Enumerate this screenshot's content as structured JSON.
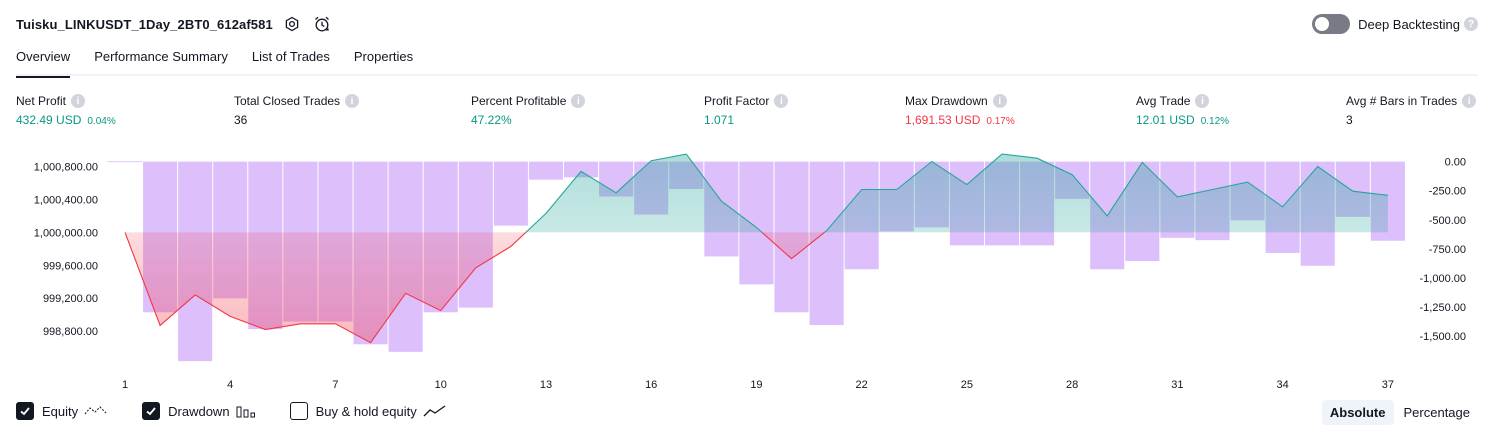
{
  "header": {
    "title": "Tuisku_LINKUSDT_1Day_2BT0_612af581",
    "settings_icon": "gear-icon",
    "alert_icon": "alarm-clock-icon"
  },
  "deep_backtesting": {
    "label": "Deep Backtesting",
    "enabled": false
  },
  "tabs": [
    {
      "label": "Overview",
      "active": true
    },
    {
      "label": "Performance Summary",
      "active": false
    },
    {
      "label": "List of Trades",
      "active": false
    },
    {
      "label": "Properties",
      "active": false
    }
  ],
  "metrics": {
    "net_profit": {
      "label": "Net Profit",
      "value": "432.49 USD",
      "pct": "0.04%"
    },
    "total_closed_trades": {
      "label": "Total Closed Trades",
      "value": "36"
    },
    "percent_profitable": {
      "label": "Percent Profitable",
      "value": "47.22%"
    },
    "profit_factor": {
      "label": "Profit Factor",
      "value": "1.071"
    },
    "max_drawdown": {
      "label": "Max Drawdown",
      "value": "1,691.53 USD",
      "pct": "0.17%"
    },
    "avg_trade": {
      "label": "Avg Trade",
      "value": "12.01 USD",
      "pct": "0.12%"
    },
    "avg_bars": {
      "label": "Avg # Bars in Trades",
      "value": "3"
    }
  },
  "colors": {
    "profit": "#089981",
    "loss": "#f23645",
    "drawdown_bar": "#d9b8fb",
    "equity_line_up": "#26a69a",
    "equity_line_down": "#f23645"
  },
  "chart_data": {
    "type": "line",
    "x_ticks": [
      1,
      4,
      7,
      10,
      13,
      16,
      19,
      22,
      25,
      28,
      31,
      34,
      37
    ],
    "left_axis": {
      "ticks": [
        "1,000,800.00",
        "1,000,400.00",
        "1,000,000.00",
        "999,600.00",
        "999,200.00",
        "998,800.00"
      ],
      "tick_values": [
        1000800,
        1000400,
        1000000,
        999600,
        999200,
        998800
      ],
      "range": [
        998450,
        1001000
      ]
    },
    "right_axis": {
      "ticks": [
        "0.00",
        "-250.00",
        "-500.00",
        "-750.00",
        "-1,000.00",
        "-1,250.00",
        "-1,500.00"
      ],
      "tick_values": [
        0,
        -250,
        -500,
        -750,
        -1000,
        -1250,
        -1500
      ],
      "range": [
        -1705,
        100
      ]
    },
    "baseline": 1000000,
    "equity": {
      "name": "Equity",
      "x": [
        1,
        2,
        3,
        4,
        5,
        6,
        7,
        8,
        9,
        10,
        11,
        12,
        13,
        14,
        15,
        16,
        17,
        18,
        19,
        20,
        21,
        22,
        23,
        24,
        25,
        26,
        27,
        28,
        29,
        30,
        31,
        32,
        33,
        34,
        35,
        36,
        37
      ],
      "values": [
        1000000,
        998870,
        999240,
        998980,
        998820,
        998890,
        998890,
        998660,
        999260,
        999050,
        999570,
        999830,
        1000230,
        1000740,
        1000480,
        1000870,
        1000950,
        1000380,
        1000060,
        999680,
        1000020,
        1000520,
        1000520,
        1000860,
        1000580,
        1000950,
        1000900,
        1000700,
        1000200,
        1000850,
        1000430,
        1000520,
        1000610,
        1000310,
        1000800,
        1000500,
        1000450
      ]
    },
    "drawdown": {
      "name": "Drawdown",
      "x": [
        1,
        2,
        3,
        4,
        5,
        6,
        7,
        8,
        9,
        10,
        11,
        12,
        13,
        14,
        15,
        16,
        17,
        18,
        19,
        20,
        21,
        22,
        23,
        24,
        25,
        26,
        27,
        28,
        29,
        30,
        31,
        32,
        33,
        34,
        35,
        36,
        37
      ],
      "values": [
        0,
        -1295,
        -1715,
        -1175,
        -1440,
        -1375,
        -1375,
        -1570,
        -1635,
        -1295,
        -1255,
        -550,
        -155,
        -135,
        -300,
        -455,
        -235,
        -815,
        -1055,
        -1295,
        -1405,
        -925,
        -600,
        -565,
        -720,
        -720,
        -720,
        -320,
        -925,
        -855,
        -655,
        -675,
        -505,
        -785,
        -895,
        -475,
        -680
      ]
    },
    "buy_hold_equity": {
      "name": "Buy & hold equity",
      "visible": false
    }
  },
  "legend": {
    "equity": {
      "label": "Equity",
      "checked": true
    },
    "drawdown": {
      "label": "Drawdown",
      "checked": true
    },
    "buy_hold": {
      "label": "Buy & hold equity",
      "checked": false
    }
  },
  "modes": {
    "absolute": "Absolute",
    "percentage": "Percentage",
    "active": "absolute"
  }
}
